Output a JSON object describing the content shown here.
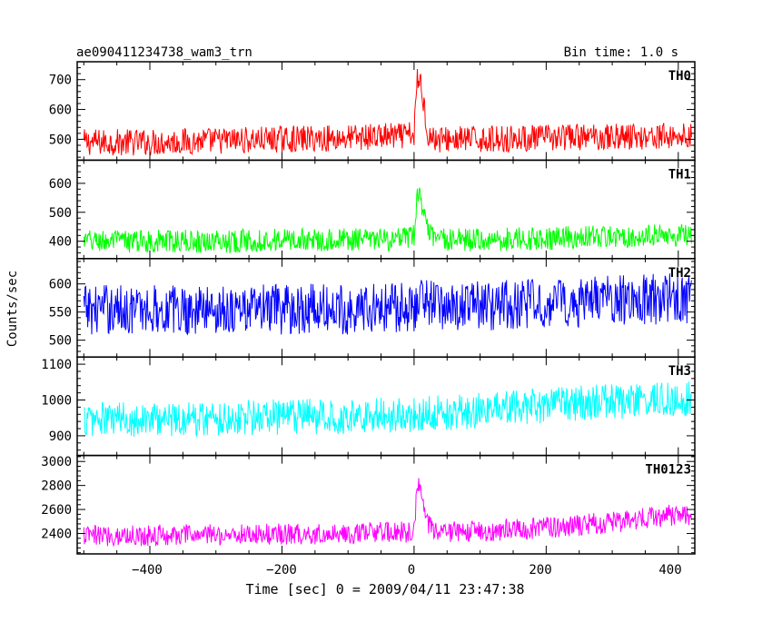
{
  "header": {
    "title": "ae090411234738_wam3_trn",
    "bin_time": "Bin time: 1.0 s"
  },
  "axes": {
    "ylabel": "Counts/sec",
    "xlabel": "Time [sec] 0 = 2009/04/11 23:47:38",
    "x_ticks": [
      "−400",
      "−200",
      "0",
      "200",
      "400"
    ]
  },
  "chart_data": [
    {
      "type": "line",
      "name": "TH0",
      "color": "#ff0000",
      "xlim": [
        -510,
        425
      ],
      "ylim": [
        430,
        760
      ],
      "ytick_values": [
        500,
        600,
        700
      ],
      "ytick_labels": [
        "500",
        "600",
        "700"
      ],
      "x": [
        -500,
        -400,
        -300,
        -200,
        -100,
        -50,
        -20,
        0,
        5,
        10,
        15,
        20,
        30,
        50,
        100,
        200,
        300,
        400,
        420
      ],
      "y": [
        490,
        490,
        495,
        500,
        505,
        510,
        510,
        515,
        700,
        690,
        620,
        520,
        500,
        500,
        500,
        505,
        510,
        510,
        510
      ],
      "noise": 45
    },
    {
      "type": "line",
      "name": "TH1",
      "color": "#00ff00",
      "xlim": [
        -510,
        425
      ],
      "ylim": [
        340,
        680
      ],
      "ytick_values": [
        400,
        500,
        600
      ],
      "ytick_labels": [
        "400",
        "500",
        "600"
      ],
      "x": [
        -500,
        -400,
        -300,
        -200,
        -100,
        -20,
        0,
        5,
        10,
        15,
        20,
        30,
        50,
        100,
        200,
        300,
        400,
        420
      ],
      "y": [
        400,
        400,
        400,
        405,
        405,
        405,
        420,
        560,
        560,
        480,
        440,
        410,
        405,
        405,
        410,
        415,
        420,
        420
      ],
      "noise": 40
    },
    {
      "type": "line",
      "name": "TH2",
      "color": "#0000ff",
      "xlim": [
        -510,
        425
      ],
      "ylim": [
        470,
        645
      ],
      "ytick_values": [
        500,
        550,
        600
      ],
      "ytick_labels": [
        "500",
        "550",
        "600"
      ],
      "x": [
        -500,
        -300,
        -100,
        0,
        10,
        20,
        100,
        200,
        300,
        420
      ],
      "y": [
        555,
        555,
        555,
        560,
        580,
        565,
        560,
        565,
        570,
        575
      ],
      "noise": 45
    },
    {
      "type": "line",
      "name": "TH3",
      "color": "#00ffff",
      "xlim": [
        -510,
        425
      ],
      "ylim": [
        845,
        1120
      ],
      "ytick_values": [
        900,
        1000,
        1100
      ],
      "ytick_labels": [
        "900",
        "1000",
        "1100"
      ],
      "x": [
        -500,
        -300,
        -100,
        0,
        100,
        200,
        300,
        420
      ],
      "y": [
        945,
        950,
        955,
        960,
        970,
        985,
        995,
        1005
      ],
      "noise": 50
    },
    {
      "type": "line",
      "name": "TH0123",
      "color": "#ff00ff",
      "xlim": [
        -510,
        425
      ],
      "ylim": [
        2230,
        3050
      ],
      "ytick_values": [
        2400,
        2600,
        2800,
        3000
      ],
      "ytick_labels": [
        "2400",
        "2600",
        "2800",
        "3000"
      ],
      "x": [
        -500,
        -400,
        -300,
        -200,
        -100,
        -20,
        0,
        5,
        10,
        15,
        20,
        30,
        50,
        100,
        200,
        300,
        400,
        420
      ],
      "y": [
        2380,
        2385,
        2390,
        2395,
        2400,
        2410,
        2420,
        2800,
        2780,
        2650,
        2500,
        2420,
        2410,
        2420,
        2450,
        2490,
        2560,
        2560
      ],
      "noise": 90
    }
  ]
}
